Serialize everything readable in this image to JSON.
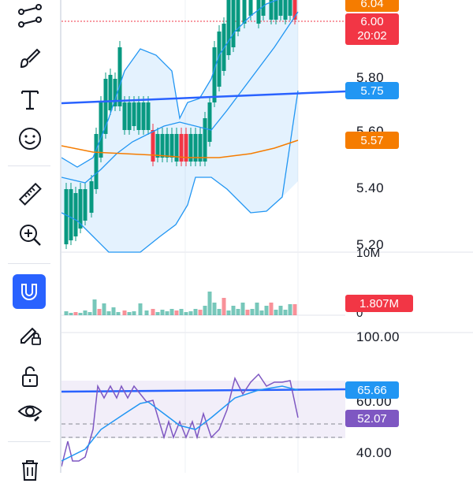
{
  "toolbar": {
    "items": [
      {
        "name": "trend-line-tool-icon"
      },
      {
        "name": "brush-tool-icon"
      },
      {
        "name": "text-tool-icon"
      },
      {
        "name": "emoji-tool-icon"
      },
      {
        "name": "ruler-tool-icon"
      },
      {
        "name": "zoom-in-tool-icon"
      },
      {
        "name": "magnet-tool-icon",
        "active": true
      },
      {
        "name": "lock-drawing-tool-icon"
      },
      {
        "name": "unlock-icon"
      },
      {
        "name": "eye-visibility-icon"
      },
      {
        "name": "trash-icon"
      }
    ]
  },
  "price_axis": {
    "labels": [
      "5.80",
      "5.60",
      "5.40",
      "5.20"
    ],
    "tags": {
      "top_orange": "6.04",
      "last_price": "6.00",
      "countdown": "20:02",
      "trend_line": "5.75",
      "ma": "5.57"
    }
  },
  "volume_axis": {
    "labels": [
      "10M",
      "0"
    ],
    "tag": "1.807M"
  },
  "rsi_axis": {
    "labels": [
      "100.00",
      "60.00",
      "40.00"
    ],
    "tags": {
      "trend_line": "65.66",
      "rsi": "52.07"
    }
  },
  "colors": {
    "up": "#089981",
    "down": "#f23645",
    "bb": "#2196f3",
    "ma": "#f57c00",
    "trend": "#2962ff",
    "rsi": "#7e57c2",
    "rsi_tag": "#7e57c2",
    "trend_tag": "#2196f3",
    "ma_tag": "#f57c00",
    "price_tag": "#f23645"
  }
}
